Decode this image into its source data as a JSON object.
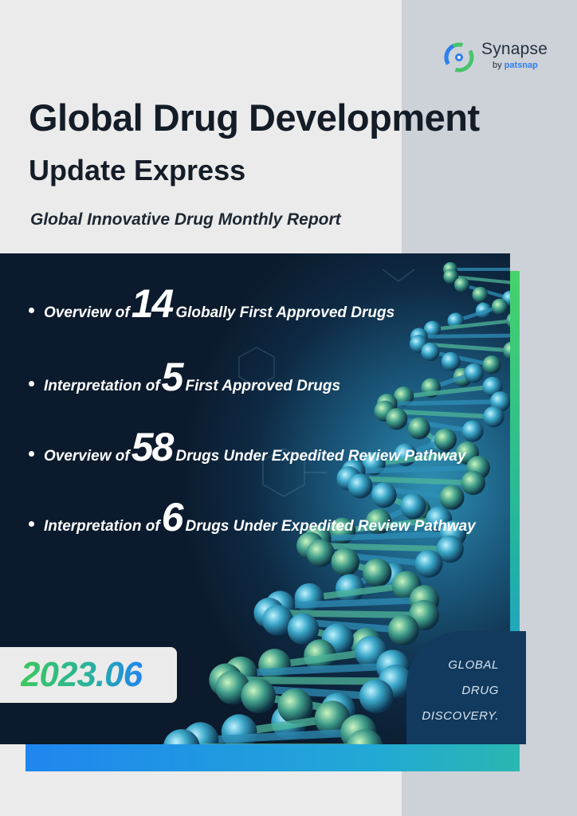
{
  "brand": {
    "name": "Synapse",
    "by_prefix": "by ",
    "by_brand": "patsnap",
    "mark_icon": "synapse-logo-mark",
    "accent_green": "#47d26a",
    "accent_blue": "#1f86ef"
  },
  "title": {
    "line1": "Global Drug Development",
    "line2": "Update Express",
    "subtitle": "Global Innovative Drug Monthly Report"
  },
  "bullets": [
    {
      "prefix": "Overview of",
      "number": "14",
      "suffix": "Globally First Approved Drugs"
    },
    {
      "prefix": "Interpretation of",
      "number": "5",
      "suffix": "First Approved Drugs"
    },
    {
      "prefix": "Overview of",
      "number": "58",
      "suffix": "Drugs Under Expedited Review Pathway"
    },
    {
      "prefix": "Interpretation of",
      "number": "6",
      "suffix": "Drugs Under Expedited Review Pathway"
    }
  ],
  "date": "2023.06",
  "tagline": [
    "GLOBAL",
    "DRUG",
    "DISCOVERY."
  ],
  "colors": {
    "hero_dark": "#0b1a2c",
    "hero_glow": "#2d8fb3",
    "side_band": "#cdd1d8",
    "page_bg": "#ebebeb"
  }
}
